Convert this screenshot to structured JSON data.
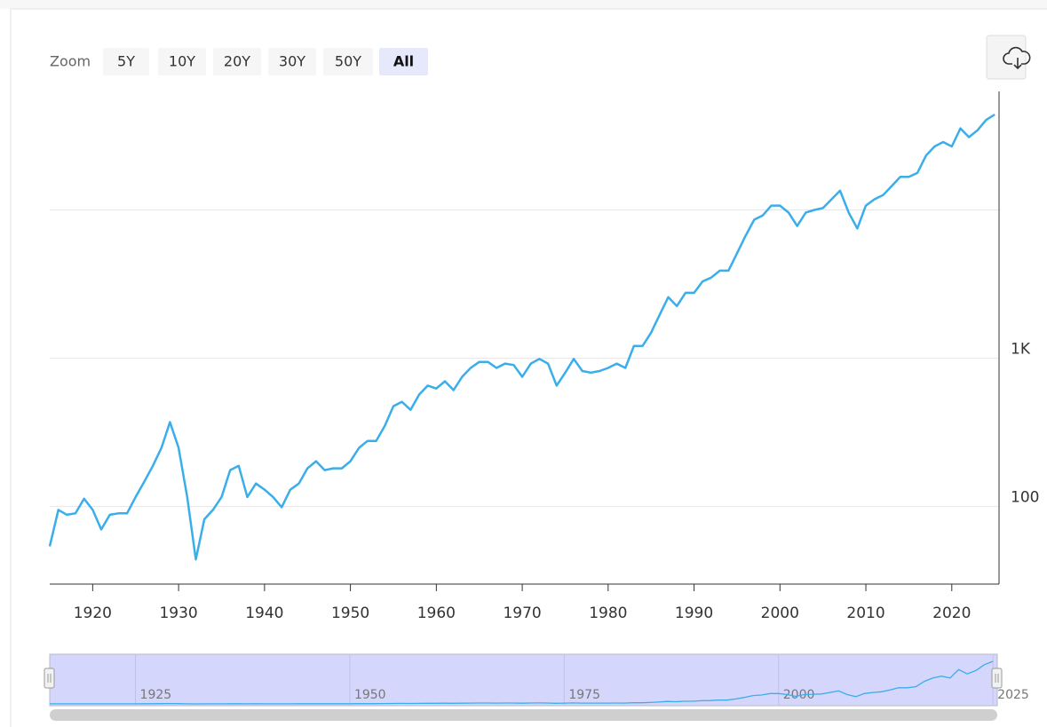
{
  "toolbar": {
    "zoom_label": "Zoom",
    "buttons": [
      "5Y",
      "10Y",
      "20Y",
      "30Y",
      "50Y",
      "All"
    ],
    "selected": "All"
  },
  "chart_data": {
    "type": "line",
    "log_scale": true,
    "grid": true,
    "color": "#3aaeea",
    "x": [
      1915,
      1916,
      1917,
      1918,
      1919,
      1920,
      1921,
      1922,
      1923,
      1924,
      1925,
      1926,
      1927,
      1928,
      1929,
      1930,
      1931,
      1932,
      1933,
      1934,
      1935,
      1936,
      1937,
      1938,
      1939,
      1940,
      1941,
      1942,
      1943,
      1944,
      1945,
      1946,
      1947,
      1948,
      1949,
      1950,
      1951,
      1952,
      1953,
      1954,
      1955,
      1956,
      1957,
      1958,
      1959,
      1960,
      1961,
      1962,
      1963,
      1964,
      1965,
      1966,
      1967,
      1968,
      1969,
      1970,
      1971,
      1972,
      1973,
      1974,
      1975,
      1976,
      1977,
      1978,
      1979,
      1980,
      1981,
      1982,
      1983,
      1984,
      1985,
      1986,
      1987,
      1988,
      1989,
      1990,
      1991,
      1992,
      1993,
      1994,
      1995,
      1996,
      1997,
      1998,
      1999,
      2000,
      2001,
      2002,
      2003,
      2004,
      2005,
      2006,
      2007,
      2008,
      2009,
      2010,
      2011,
      2012,
      2013,
      2014,
      2015,
      2016,
      2017,
      2018,
      2019,
      2020,
      2021,
      2022,
      2023,
      2024,
      2025
    ],
    "values": [
      54,
      95,
      88,
      90,
      113,
      95,
      70,
      88,
      90,
      90,
      116,
      147,
      188,
      249,
      371,
      249,
      116,
      44,
      82,
      95,
      116,
      176,
      188,
      116,
      143,
      130,
      116,
      99,
      130,
      143,
      181,
      202,
      176,
      181,
      181,
      202,
      249,
      277,
      277,
      350,
      475,
      509,
      449,
      569,
      654,
      625,
      700,
      610,
      750,
      860,
      945,
      945,
      860,
      920,
      900,
      750,
      920,
      990,
      920,
      654,
      800,
      990,
      820,
      800,
      820,
      860,
      920,
      860,
      1210,
      1210,
      1490,
      1970,
      2580,
      2250,
      2760,
      2760,
      3300,
      3500,
      3900,
      3900,
      5100,
      6700,
      8600,
      9200,
      10700,
      10700,
      9600,
      7800,
      9600,
      10000,
      10300,
      11800,
      13500,
      9600,
      7500,
      10700,
      11800,
      12600,
      14500,
      16700,
      16700,
      17800,
      23300,
      26800,
      28700,
      26800,
      35500,
      31000,
      34500,
      40500,
      44000
    ],
    "xlim": [
      1915,
      2025.5
    ],
    "xticks": [
      1920,
      1930,
      1940,
      1950,
      1960,
      1970,
      1980,
      1990,
      2000,
      2010,
      2020
    ],
    "ylim": [
      30,
      63000
    ],
    "yticks": [
      100,
      {
        "value": 1000,
        "label": "1K"
      },
      {
        "value": 10000,
        "label": null
      }
    ],
    "navigator": {
      "xticks": [
        1925,
        1950,
        1975,
        2000,
        2025
      ]
    }
  }
}
